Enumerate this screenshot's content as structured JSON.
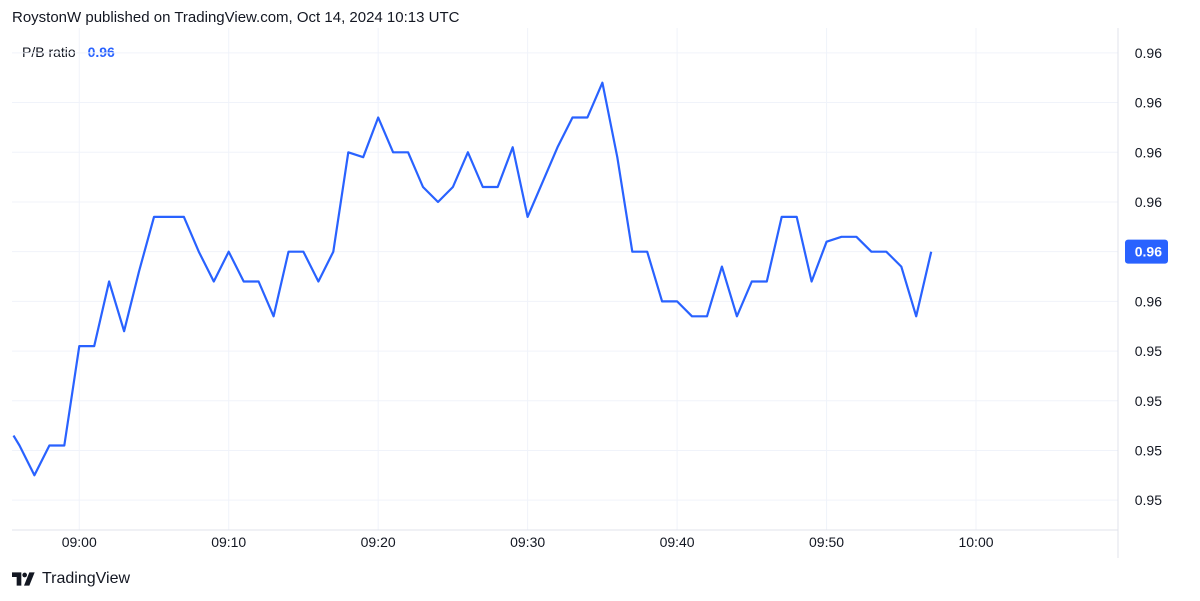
{
  "header": {
    "text": "RoystonW published on TradingView.com, Oct 14, 2024 10:13 UTC"
  },
  "legend": {
    "name": "P/B ratio",
    "value": "0.96"
  },
  "footer": {
    "brand": "TradingView",
    "logo_icon": "tradingview-logo-icon"
  },
  "colors": {
    "line": "#2962ff",
    "grid": "#f0f3fa",
    "text": "#131722"
  },
  "chart_data": {
    "type": "line",
    "title": "",
    "xlabel": "",
    "ylabel": "",
    "x_tick_labels": [
      "09:00",
      "09:10",
      "09:20",
      "09:30",
      "09:40",
      "09:50",
      "10:00"
    ],
    "x_ticks": [
      0,
      10,
      20,
      30,
      40,
      50,
      60
    ],
    "y_tick_labels": [
      "0.96",
      "0.96",
      "0.96",
      "0.96",
      "0.96",
      "0.96",
      "0.95",
      "0.95",
      "0.95",
      "0.95"
    ],
    "y_ticks": [
      9.0,
      8.0,
      7.0,
      6.0,
      5.0,
      4.0,
      3.0,
      2.0,
      1.0,
      0.0
    ],
    "ylim": [
      -0.6,
      9.5
    ],
    "xlim": [
      -4.5,
      69.5
    ],
    "last_value_label": "0.96",
    "last_value": 5.0,
    "series": [
      {
        "x": [
          -4.4,
          -4.0,
          -3.0,
          -2.0,
          -1.0,
          0.0,
          1.0,
          2.0,
          3.0,
          4.0,
          5.0,
          6.0,
          7.0,
          8.0,
          9.0,
          10.0,
          11.0,
          12.0,
          13.0,
          14.0,
          15.0,
          16.0,
          17.0,
          18.0,
          19.0,
          20.0,
          21.0,
          22.0,
          23.0,
          24.0,
          25.0,
          26.0,
          27.0,
          28.0,
          29.0,
          30.0,
          31.0,
          32.0,
          33.0,
          34.0,
          35.0,
          36.0,
          37.0,
          38.0,
          39.0,
          40.0,
          41.0,
          42.0,
          43.0,
          44.0,
          45.0,
          46.0,
          47.0,
          48.0,
          49.0,
          50.0,
          51.0,
          52.0,
          53.0,
          54.0,
          55.0,
          56.0,
          57.0
        ],
        "y": [
          1.3,
          1.1,
          0.5,
          1.1,
          1.1,
          3.1,
          3.1,
          4.4,
          3.4,
          4.6,
          5.7,
          5.7,
          5.7,
          5.0,
          4.4,
          5.0,
          4.4,
          4.4,
          3.7,
          5.0,
          5.0,
          4.4,
          5.0,
          7.0,
          6.9,
          7.7,
          7.0,
          7.0,
          6.3,
          6.0,
          6.3,
          7.0,
          6.3,
          6.3,
          7.1,
          5.7,
          6.4,
          7.1,
          7.7,
          7.7,
          8.4,
          6.9,
          5.0,
          5.0,
          4.0,
          4.0,
          3.7,
          3.7,
          4.7,
          3.7,
          4.4,
          4.4,
          5.7,
          5.7,
          4.4,
          5.2,
          5.3,
          5.3,
          5.0,
          5.0,
          4.7,
          3.7,
          5.0
        ]
      }
    ],
    "grid": true,
    "y_axis_position": "right"
  }
}
